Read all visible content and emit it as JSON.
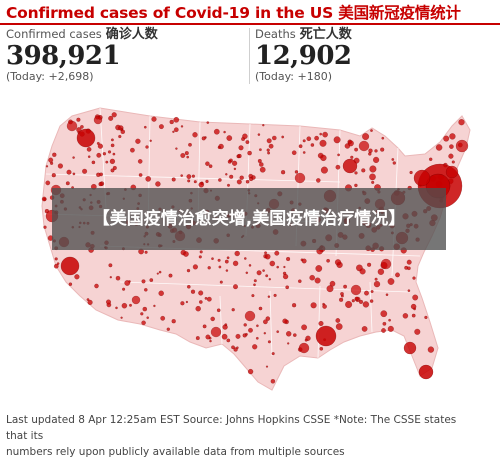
{
  "header": {
    "title": "Confirmed cases of Covid-19 in the US 美国新冠疫情统计"
  },
  "stats": {
    "cases": {
      "label": "Confirmed cases",
      "label_cn": "确诊人数",
      "value": "398,921",
      "today": "(Today: +2,698)"
    },
    "deaths": {
      "label": "Deaths",
      "label_cn": "死亡人数",
      "value": "12,902",
      "today": "(Today: +180)"
    }
  },
  "map": {
    "land_color": "#f6d3d3",
    "border_color": "#ffffff",
    "bubble_color": "#c70000",
    "bubble_dark": "#6a0000"
  },
  "overlay": {
    "text": "【美国疫情治愈突增,美国疫情治疗情况】"
  },
  "footer": {
    "line1": "Last updated 8 Apr 12:25am EST Source: Johns Hopkins CSSE *Note: The CSSE states that its",
    "line2": "numbers rely upon publicly available data from multiple sources"
  }
}
